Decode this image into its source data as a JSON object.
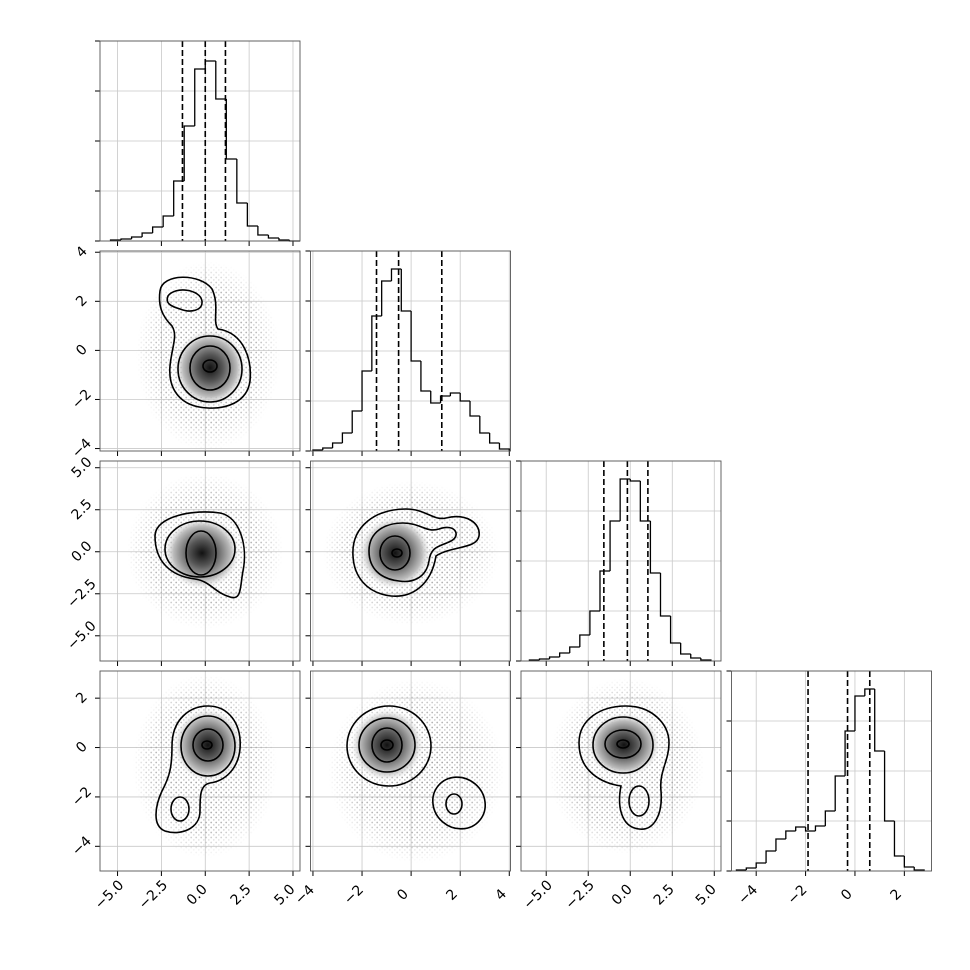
{
  "chart_data": {
    "type": "corner",
    "grid": true,
    "hist_ylim": [
      0,
      200
    ],
    "hist_yticks": [
      0,
      50,
      100,
      150,
      200
    ],
    "parameters": [
      {
        "xlim": [
          -6.0,
          5.4
        ],
        "xticks": [
          {
            "value": -5,
            "label": "−5.0"
          },
          {
            "value": -2.5,
            "label": "−2.5"
          },
          {
            "value": 0,
            "label": "0.0"
          },
          2.5,
          {
            "value": 5,
            "label": "5.0"
          }
        ],
        "bins": [
          -5.4,
          -4.8,
          -4.2,
          -3.6,
          -3.0,
          -2.4,
          -1.8,
          -1.2,
          -0.6,
          0,
          0.6,
          1.2,
          1.8,
          2.4,
          3.0,
          3.6,
          4.2,
          4.8,
          5.4
        ],
        "counts": [
          1,
          2,
          4,
          8,
          14,
          25,
          60,
          115,
          172,
          180,
          142,
          82,
          38,
          15,
          6,
          3,
          1,
          0
        ],
        "quantiles": [
          -1.3,
          0.0,
          1.15
        ]
      },
      {
        "xlim": [
          -4.1,
          4.05
        ],
        "xticks": [
          {
            "value": -4,
            "label": "−4"
          },
          {
            "value": -2,
            "label": "−2"
          },
          0,
          2,
          4
        ],
        "bins": [
          -4.0,
          -3.6,
          -3.2,
          -2.8,
          -2.4,
          -2.0,
          -1.6,
          -1.2,
          -0.8,
          -0.4,
          0,
          0.4,
          0.8,
          1.2,
          1.6,
          2.0,
          2.4,
          2.8,
          3.2,
          3.6,
          4.0
        ],
        "counts": [
          1,
          3,
          8,
          18,
          40,
          80,
          135,
          170,
          182,
          140,
          90,
          60,
          48,
          55,
          58,
          50,
          35,
          18,
          8,
          2
        ],
        "quantiles": [
          -1.41,
          -0.51,
          1.25
        ]
      },
      {
        "xlim": [
          -6.5,
          5.4
        ],
        "xticks": [
          {
            "value": -5,
            "label": "−5.0"
          },
          {
            "value": -2.5,
            "label": "−2.5"
          },
          {
            "value": 0,
            "label": "0.0"
          },
          2.5,
          {
            "value": 5,
            "label": "5.0"
          }
        ],
        "bins": [
          -6.0,
          -5.4,
          -4.8,
          -4.2,
          -3.6,
          -3.0,
          -2.4,
          -1.8,
          -1.2,
          -0.6,
          0,
          0.6,
          1.2,
          1.8,
          2.4,
          3.0,
          3.6,
          4.2,
          4.8
        ],
        "counts": [
          1,
          2,
          4,
          8,
          14,
          26,
          50,
          90,
          140,
          182,
          180,
          140,
          88,
          45,
          18,
          7,
          3,
          1
        ],
        "quantiles": [
          -1.57,
          -0.17,
          1.05
        ]
      },
      {
        "xlim": [
          -5.0,
          3.1
        ],
        "xticks": [
          {
            "value": -4,
            "label": "−4"
          },
          {
            "value": -2,
            "label": "−2"
          },
          0,
          2
        ],
        "bins": [
          -4.8,
          -4.4,
          -4.0,
          -3.6,
          -3.2,
          -2.8,
          -2.4,
          -2.0,
          -1.6,
          -1.2,
          -0.8,
          -0.4,
          0,
          0.4,
          0.8,
          1.2,
          1.6,
          2.0,
          2.4,
          2.8
        ],
        "counts": [
          1,
          3,
          8,
          20,
          32,
          40,
          44,
          40,
          45,
          60,
          95,
          140,
          175,
          182,
          120,
          50,
          15,
          4,
          1
        ],
        "quantiles": [
          -1.9,
          -0.3,
          0.6
        ]
      }
    ]
  }
}
